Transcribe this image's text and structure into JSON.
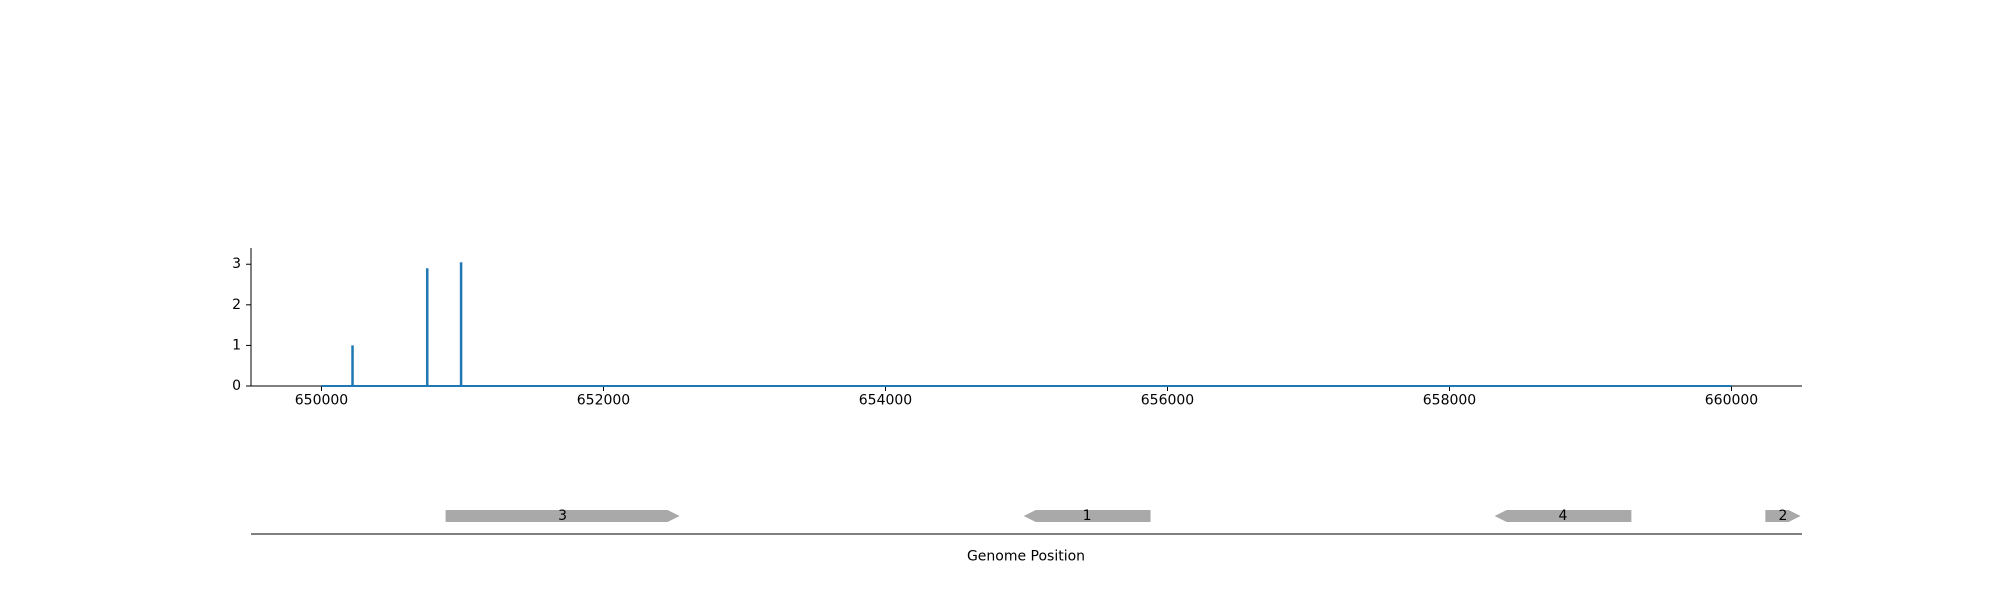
{
  "chart_data": [
    {
      "type": "line",
      "title": "",
      "xlabel": "",
      "ylabel": "",
      "xlim": [
        649500,
        660500
      ],
      "ylim": [
        0,
        3.4
      ],
      "xticks": [
        650000,
        652000,
        654000,
        656000,
        658000,
        660000
      ],
      "yticks": [
        0,
        1,
        2,
        3
      ],
      "grid": false,
      "series": [
        {
          "color": "#1f77b4",
          "x_start": 650000,
          "x_end": 660000,
          "baseline": 0,
          "peaks": [
            {
              "x": 650220,
              "y": 1.0
            },
            {
              "x": 650750,
              "y": 2.9
            },
            {
              "x": 650990,
              "y": 3.05
            }
          ]
        }
      ]
    },
    {
      "type": "gene-track",
      "xlabel": "Genome Position",
      "xlim": [
        649500,
        660500
      ],
      "color": "#a9a9a9",
      "genes": [
        {
          "label": "3",
          "start": 650880,
          "end": 652540,
          "strand": "+"
        },
        {
          "label": "1",
          "start": 654980,
          "end": 655880,
          "strand": "-"
        },
        {
          "label": "4",
          "start": 658320,
          "end": 659290,
          "strand": "-"
        },
        {
          "label": "2",
          "start": 660240,
          "end": 660490,
          "strand": "+"
        }
      ]
    }
  ]
}
